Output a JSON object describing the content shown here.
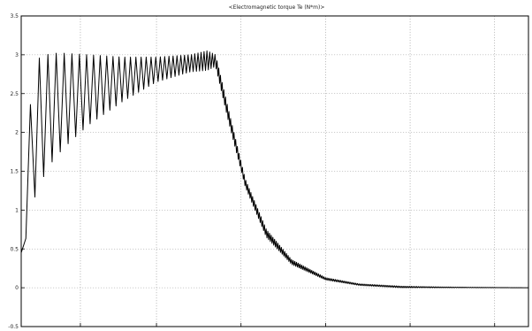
{
  "chart_data": {
    "type": "line",
    "title": "<Electromagnetic torque Te (N*m)>",
    "xlabel": "",
    "ylabel": "",
    "xlim": [
      0,
      6
    ],
    "ylim": [
      -0.5,
      3.5
    ],
    "yticks": [
      -0.5,
      0,
      0.5,
      1,
      1.5,
      2,
      2.5,
      3,
      3.5
    ],
    "ytick_labels": [
      "-0.5",
      "0",
      "0.5",
      "1",
      "1.5",
      "2",
      "2.5",
      "3",
      "3.5"
    ],
    "xticks": [
      0,
      0.7,
      1.6,
      2.6,
      3.6,
      4.6,
      5.6
    ],
    "xtick_labels": [
      "",
      "",
      "",
      "",
      "",
      "",
      ""
    ],
    "grid": true,
    "series": [
      {
        "name": "",
        "color": "#000000",
        "envelope_x": [
          0,
          0.05,
          0.1,
          0.2,
          0.35,
          0.5,
          0.8,
          1.2,
          1.6,
          2.0,
          2.2,
          2.3,
          2.45,
          2.65,
          2.9,
          3.2,
          3.6,
          4.0,
          4.5,
          5.0,
          6.0
        ],
        "envelope_upper": [
          0.45,
          1.85,
          2.3,
          2.95,
          3.02,
          3.02,
          3.0,
          2.97,
          2.97,
          3.0,
          3.05,
          3.0,
          2.3,
          1.4,
          0.75,
          0.36,
          0.13,
          0.05,
          0.02,
          0.01,
          0.0
        ],
        "envelope_lower": [
          0.45,
          0.6,
          0.95,
          1.3,
          1.6,
          1.8,
          2.1,
          2.4,
          2.65,
          2.78,
          2.8,
          2.85,
          2.15,
          1.3,
          0.65,
          0.3,
          0.1,
          0.03,
          0.0,
          0.0,
          0.0
        ]
      }
    ]
  }
}
